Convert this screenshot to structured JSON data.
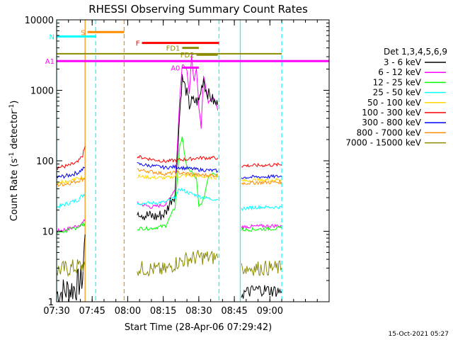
{
  "chart_data": {
    "type": "line",
    "title": "RHESSI Observing Summary Count Rates",
    "xlabel": "Start Time (28-Apr-06 07:29:42)",
    "ylabel_main": "Count Rate (s",
    "ylabel_sup1": "-1",
    "ylabel_mid": " detector",
    "ylabel_sup2": "-1",
    "ylabel_end": ")",
    "xlim": [
      450,
      565
    ],
    "ylim": [
      1,
      10000
    ],
    "yscale": "log",
    "x_ticks": [
      {
        "v": 450,
        "label": "07:30"
      },
      {
        "v": 465,
        "label": "07:45"
      },
      {
        "v": 480,
        "label": "08:00"
      },
      {
        "v": 495,
        "label": "08:15"
      },
      {
        "v": 510,
        "label": "08:30"
      },
      {
        "v": 525,
        "label": "08:45"
      },
      {
        "v": 540,
        "label": "09:00"
      }
    ],
    "y_ticks": [
      {
        "v": 1,
        "label": "1"
      },
      {
        "v": 10,
        "label": "10"
      },
      {
        "v": 100,
        "label": "100"
      },
      {
        "v": 1000,
        "label": "1000"
      },
      {
        "v": 10000,
        "label": "10000"
      }
    ],
    "legend_title": "Det 1,3,4,5,6,9",
    "legend_position": "right",
    "series": [
      {
        "name": "3 - 6 keV",
        "color": "#000000",
        "points": [
          [
            450,
            1.3
          ],
          [
            458,
            1.6
          ],
          [
            461,
            2.2
          ],
          [
            462,
            9
          ]
        ]
      },
      {
        "name": "6 - 12 keV",
        "color": "#ff00ff",
        "points": [
          [
            450,
            10
          ],
          [
            456,
            11
          ],
          [
            460,
            12.5
          ],
          [
            462,
            14
          ]
        ]
      },
      {
        "name": "12 - 25 keV",
        "color": "#00ff00",
        "points": [
          [
            450,
            9.5
          ],
          [
            456,
            10.5
          ],
          [
            460,
            12
          ],
          [
            462,
            13
          ]
        ]
      },
      {
        "name": "25 - 50 keV",
        "color": "#00ffff",
        "points": [
          [
            450,
            22
          ],
          [
            455,
            25
          ],
          [
            459,
            28
          ],
          [
            462,
            35
          ]
        ]
      },
      {
        "name": "50 - 100 keV",
        "color": "#ffd700",
        "points": [
          [
            450,
            50
          ],
          [
            455,
            52
          ],
          [
            459,
            56
          ],
          [
            462,
            60
          ]
        ]
      },
      {
        "name": "100 - 300 keV",
        "color": "#ff0000",
        "points": [
          [
            450,
            80
          ],
          [
            455,
            85
          ],
          [
            459,
            95
          ],
          [
            461,
            120
          ],
          [
            462,
            160
          ]
        ]
      },
      {
        "name": "300 - 800 keV",
        "color": "#0000ff",
        "points": [
          [
            450,
            58
          ],
          [
            455,
            62
          ],
          [
            459,
            68
          ],
          [
            462,
            80
          ]
        ]
      },
      {
        "name": "800 - 7000 keV",
        "color": "#ff8c00",
        "points": [
          [
            450,
            45
          ],
          [
            455,
            48
          ],
          [
            459,
            52
          ],
          [
            462,
            57
          ]
        ]
      },
      {
        "name": "7000 - 15000 keV",
        "color": "#8b8b00",
        "points": [
          [
            450,
            2.8
          ],
          [
            456,
            3
          ],
          [
            460,
            3.2
          ],
          [
            462,
            3.3
          ]
        ]
      }
    ],
    "segment2": {
      "magenta": [
        [
          484,
          25
        ],
        [
          490,
          22
        ],
        [
          496,
          24
        ],
        [
          500,
          40
        ],
        [
          502,
          800
        ],
        [
          503,
          2400
        ],
        [
          505,
          2000
        ],
        [
          506,
          900
        ],
        [
          507,
          3100
        ],
        [
          508,
          1300
        ],
        [
          509,
          2000
        ],
        [
          510,
          600
        ],
        [
          511,
          300
        ],
        [
          512,
          1600
        ],
        [
          513,
          1100
        ],
        [
          514,
          700
        ],
        [
          516,
          820
        ],
        [
          518,
          520
        ]
      ],
      "black": [
        [
          484,
          20
        ],
        [
          487,
          17
        ],
        [
          492,
          16
        ],
        [
          496,
          18
        ],
        [
          498,
          27
        ],
        [
          500,
          34
        ],
        [
          502,
          500
        ],
        [
          503,
          1500
        ],
        [
          505,
          900
        ],
        [
          506,
          600
        ],
        [
          507,
          700
        ],
        [
          510,
          700
        ],
        [
          512,
          1500
        ],
        [
          513,
          1000
        ],
        [
          515,
          800
        ],
        [
          517,
          650
        ],
        [
          518,
          620
        ]
      ],
      "green": [
        [
          484,
          11
        ],
        [
          490,
          11
        ],
        [
          496,
          12
        ],
        [
          500,
          22
        ],
        [
          502,
          170
        ],
        [
          503,
          210
        ],
        [
          505,
          80
        ],
        [
          507,
          70
        ],
        [
          509,
          55
        ],
        [
          510,
          22
        ],
        [
          512,
          28
        ],
        [
          514,
          60
        ],
        [
          516,
          70
        ],
        [
          518,
          60
        ]
      ],
      "cyan": [
        [
          484,
          25
        ],
        [
          490,
          25
        ],
        [
          496,
          26
        ],
        [
          500,
          30
        ],
        [
          502,
          40
        ],
        [
          505,
          36
        ],
        [
          508,
          33
        ],
        [
          512,
          30
        ],
        [
          518,
          28
        ]
      ],
      "yellow": [
        [
          484,
          60
        ],
        [
          490,
          58
        ],
        [
          496,
          57
        ],
        [
          500,
          60
        ],
        [
          505,
          62
        ],
        [
          510,
          60
        ],
        [
          518,
          58
        ]
      ],
      "red": [
        [
          484,
          115
        ],
        [
          490,
          105
        ],
        [
          496,
          98
        ],
        [
          500,
          102
        ],
        [
          505,
          105
        ],
        [
          510,
          110
        ],
        [
          518,
          110
        ]
      ],
      "blue": [
        [
          484,
          90
        ],
        [
          490,
          85
        ],
        [
          496,
          80
        ],
        [
          500,
          82
        ],
        [
          505,
          78
        ],
        [
          510,
          75
        ],
        [
          518,
          72
        ]
      ],
      "orange": [
        [
          484,
          75
        ],
        [
          490,
          70
        ],
        [
          496,
          65
        ],
        [
          500,
          68
        ],
        [
          505,
          66
        ],
        [
          510,
          63
        ],
        [
          518,
          62
        ]
      ],
      "olive": [
        [
          484,
          3
        ],
        [
          490,
          2.9
        ],
        [
          496,
          2.8
        ],
        [
          500,
          3.5
        ],
        [
          505,
          4
        ],
        [
          510,
          4.3
        ],
        [
          518,
          4.2
        ]
      ]
    },
    "segment3": {
      "magenta": [
        [
          528,
          11.5
        ],
        [
          535,
          11.8
        ],
        [
          545,
          12
        ]
      ],
      "green": [
        [
          528,
          10.5
        ],
        [
          535,
          10.7
        ],
        [
          545,
          11
        ]
      ],
      "cyan": [
        [
          528,
          21
        ],
        [
          535,
          22
        ],
        [
          545,
          22
        ]
      ],
      "yellow": [
        [
          528,
          52
        ],
        [
          535,
          53
        ],
        [
          545,
          54
        ]
      ],
      "red": [
        [
          528,
          85
        ],
        [
          535,
          86
        ],
        [
          545,
          88
        ]
      ],
      "blue": [
        [
          528,
          58
        ],
        [
          535,
          59
        ],
        [
          545,
          60
        ]
      ],
      "orange": [
        [
          528,
          48
        ],
        [
          535,
          49
        ],
        [
          545,
          50
        ]
      ],
      "olive": [
        [
          528,
          3
        ],
        [
          535,
          3
        ],
        [
          545,
          3
        ]
      ],
      "black": [
        [
          528,
          1.3
        ],
        [
          535,
          1.5
        ],
        [
          545,
          1.4
        ]
      ]
    },
    "flags": [
      {
        "label": "S",
        "color": "#ff8c00",
        "x0": 463,
        "x1": 478.5,
        "y": 6700
      },
      {
        "label": "N",
        "color": "#00ffff",
        "x0": 450,
        "x1": 466.5,
        "y": 5800
      },
      {
        "label": "F",
        "color": "#ff0000",
        "x0": 486,
        "x1": 518.5,
        "y": 4700
      },
      {
        "label": "FD1",
        "color": "#8b8b00",
        "x0": 503,
        "x1": 510,
        "y": 4000
      },
      {
        "label": "FD2",
        "color": "#8b8b00",
        "x0": 509,
        "x1": 518,
        "y": 3200
      },
      {
        "label": "A1",
        "color": "#ff00ff",
        "x0": 450,
        "x1": 565,
        "y": 2600
      },
      {
        "label": "A0",
        "color": "#ff00ff",
        "x0": 503,
        "x1": 510,
        "y": 2100
      }
    ],
    "vlines": [
      {
        "x": 450,
        "color": "#00ffff",
        "dashed": false
      },
      {
        "x": 462,
        "color": "#ff8c00",
        "dashed": false
      },
      {
        "x": 466.5,
        "color": "#00ffff",
        "dashed": true
      },
      {
        "x": 478.5,
        "color": "#ff8c00",
        "dashed": true
      },
      {
        "x": 518.5,
        "color": "#00ffff",
        "dashed": true
      },
      {
        "x": 527.5,
        "color": "#00ffff",
        "dashed": false
      },
      {
        "x": 545,
        "color": "#00ffff",
        "dashed": true
      }
    ],
    "timestamp": "15-Oct-2021 05:27"
  }
}
